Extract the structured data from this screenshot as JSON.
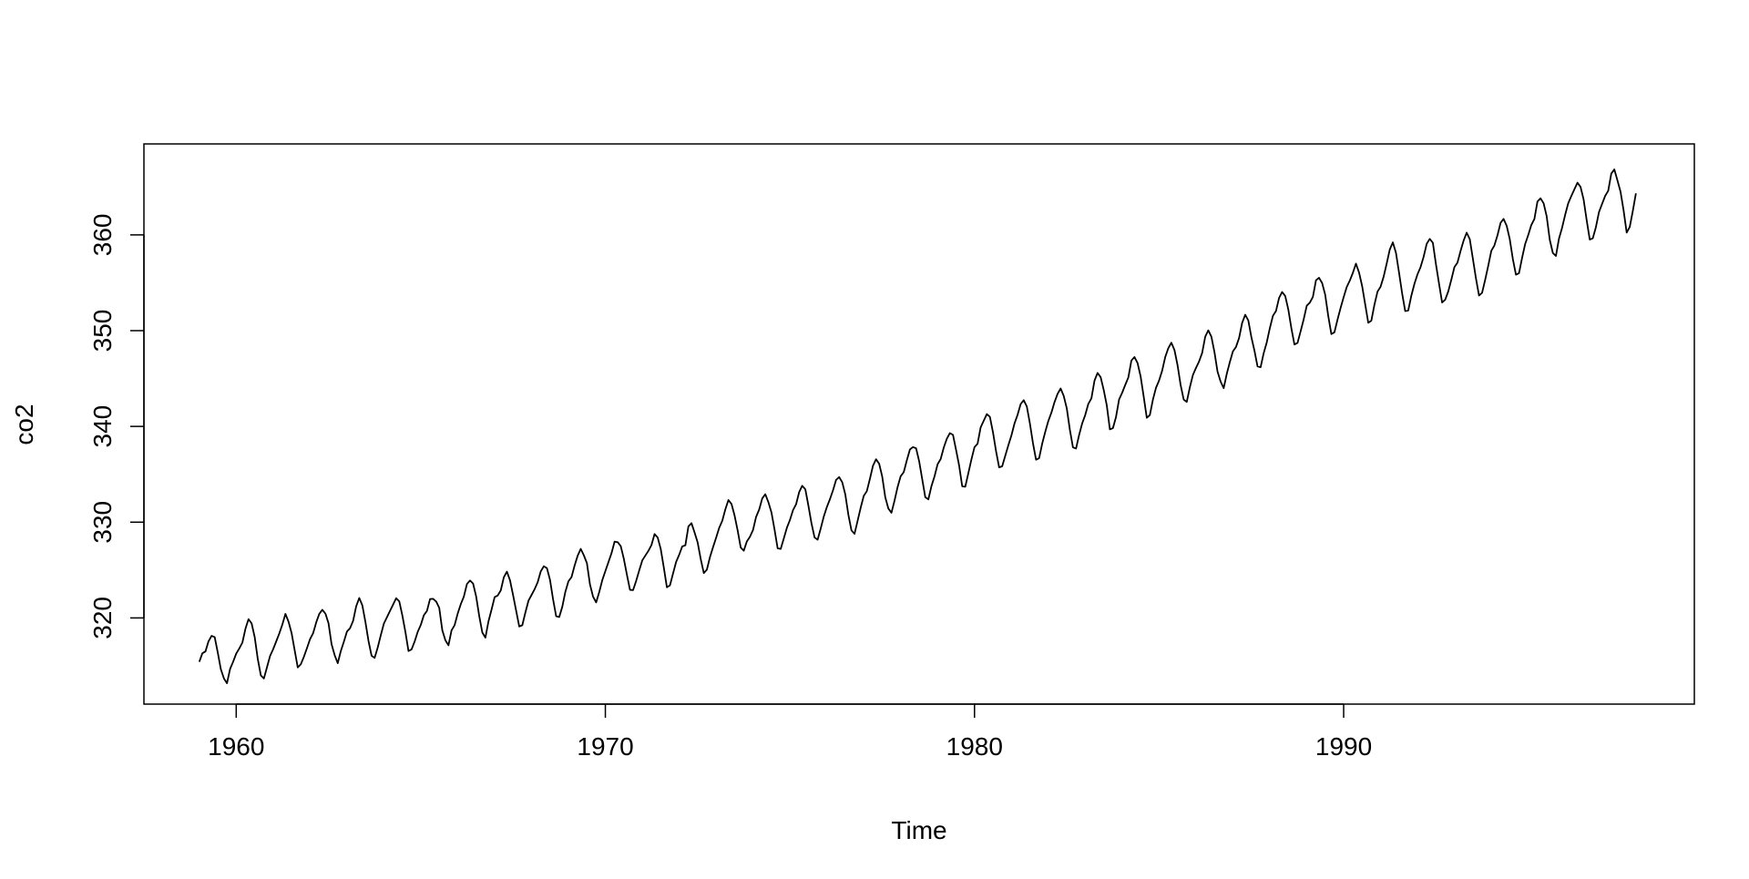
{
  "chart_data": {
    "type": "line",
    "title": "",
    "xlabel": "Time",
    "ylabel": "co2",
    "xlim": [
      1957.5,
      1999.5
    ],
    "ylim": [
      311,
      369.5
    ],
    "x_ticks": [
      1960,
      1970,
      1980,
      1990
    ],
    "y_ticks": [
      320,
      330,
      340,
      350,
      360
    ],
    "grid": false,
    "legend": "none",
    "line_color": "#000000",
    "x": [
      1959.0,
      1959.083,
      1959.167,
      1959.25,
      1959.333,
      1959.417,
      1959.5,
      1959.583,
      1959.667,
      1959.75,
      1959.833,
      1959.917,
      1960.0,
      1960.083,
      1960.167,
      1960.25,
      1960.333,
      1960.417,
      1960.5,
      1960.583,
      1960.667,
      1960.75,
      1960.833,
      1960.917,
      1961.0,
      1961.083,
      1961.167,
      1961.25,
      1961.333,
      1961.417,
      1961.5,
      1961.583,
      1961.667,
      1961.75,
      1961.833,
      1961.917,
      1962.0,
      1962.083,
      1962.167,
      1962.25,
      1962.333,
      1962.417,
      1962.5,
      1962.583,
      1962.667,
      1962.75,
      1962.833,
      1962.917,
      1963.0,
      1963.083,
      1963.167,
      1963.25,
      1963.333,
      1963.417,
      1963.5,
      1963.583,
      1963.667,
      1963.75,
      1963.833,
      1963.917,
      1964.0,
      1964.083,
      1964.167,
      1964.25,
      1964.333,
      1964.417,
      1964.5,
      1964.583,
      1964.667,
      1964.75,
      1964.833,
      1964.917,
      1965.0,
      1965.083,
      1965.167,
      1965.25,
      1965.333,
      1965.417,
      1965.5,
      1965.583,
      1965.667,
      1965.75,
      1965.833,
      1965.917,
      1966.0,
      1966.083,
      1966.167,
      1966.25,
      1966.333,
      1966.417,
      1966.5,
      1966.583,
      1966.667,
      1966.75,
      1966.833,
      1966.917,
      1967.0,
      1967.083,
      1967.167,
      1967.25,
      1967.333,
      1967.417,
      1967.5,
      1967.583,
      1967.667,
      1967.75,
      1967.833,
      1967.917,
      1968.0,
      1968.083,
      1968.167,
      1968.25,
      1968.333,
      1968.417,
      1968.5,
      1968.583,
      1968.667,
      1968.75,
      1968.833,
      1968.917,
      1969.0,
      1969.083,
      1969.167,
      1969.25,
      1969.333,
      1969.417,
      1969.5,
      1969.583,
      1969.667,
      1969.75,
      1969.833,
      1969.917,
      1970.0,
      1970.083,
      1970.167,
      1970.25,
      1970.333,
      1970.417,
      1970.5,
      1970.583,
      1970.667,
      1970.75,
      1970.833,
      1970.917,
      1971.0,
      1971.083,
      1971.167,
      1971.25,
      1971.333,
      1971.417,
      1971.5,
      1971.583,
      1971.667,
      1971.75,
      1971.833,
      1971.917,
      1972.0,
      1972.083,
      1972.167,
      1972.25,
      1972.333,
      1972.417,
      1972.5,
      1972.583,
      1972.667,
      1972.75,
      1972.833,
      1972.917,
      1973.0,
      1973.083,
      1973.167,
      1973.25,
      1973.333,
      1973.417,
      1973.5,
      1973.583,
      1973.667,
      1973.75,
      1973.833,
      1973.917,
      1974.0,
      1974.083,
      1974.167,
      1974.25,
      1974.333,
      1974.417,
      1974.5,
      1974.583,
      1974.667,
      1974.75,
      1974.833,
      1974.917,
      1975.0,
      1975.083,
      1975.167,
      1975.25,
      1975.333,
      1975.417,
      1975.5,
      1975.583,
      1975.667,
      1975.75,
      1975.833,
      1975.917,
      1976.0,
      1976.083,
      1976.167,
      1976.25,
      1976.333,
      1976.417,
      1976.5,
      1976.583,
      1976.667,
      1976.75,
      1976.833,
      1976.917,
      1977.0,
      1977.083,
      1977.167,
      1977.25,
      1977.333,
      1977.417,
      1977.5,
      1977.583,
      1977.667,
      1977.75,
      1977.833,
      1977.917,
      1978.0,
      1978.083,
      1978.167,
      1978.25,
      1978.333,
      1978.417,
      1978.5,
      1978.583,
      1978.667,
      1978.75,
      1978.833,
      1978.917,
      1979.0,
      1979.083,
      1979.167,
      1979.25,
      1979.333,
      1979.417,
      1979.5,
      1979.583,
      1979.667,
      1979.75,
      1979.833,
      1979.917,
      1980.0,
      1980.083,
      1980.167,
      1980.25,
      1980.333,
      1980.417,
      1980.5,
      1980.583,
      1980.667,
      1980.75,
      1980.833,
      1980.917,
      1981.0,
      1981.083,
      1981.167,
      1981.25,
      1981.333,
      1981.417,
      1981.5,
      1981.583,
      1981.667,
      1981.75,
      1981.833,
      1981.917,
      1982.0,
      1982.083,
      1982.167,
      1982.25,
      1982.333,
      1982.417,
      1982.5,
      1982.583,
      1982.667,
      1982.75,
      1982.833,
      1982.917,
      1983.0,
      1983.083,
      1983.167,
      1983.25,
      1983.333,
      1983.417,
      1983.5,
      1983.583,
      1983.667,
      1983.75,
      1983.833,
      1983.917,
      1984.0,
      1984.083,
      1984.167,
      1984.25,
      1984.333,
      1984.417,
      1984.5,
      1984.583,
      1984.667,
      1984.75,
      1984.833,
      1984.917,
      1985.0,
      1985.083,
      1985.167,
      1985.25,
      1985.333,
      1985.417,
      1985.5,
      1985.583,
      1985.667,
      1985.75,
      1985.833,
      1985.917,
      1986.0,
      1986.083,
      1986.167,
      1986.25,
      1986.333,
      1986.417,
      1986.5,
      1986.583,
      1986.667,
      1986.75,
      1986.833,
      1986.917,
      1987.0,
      1987.083,
      1987.167,
      1987.25,
      1987.333,
      1987.417,
      1987.5,
      1987.583,
      1987.667,
      1987.75,
      1987.833,
      1987.917,
      1988.0,
      1988.083,
      1988.167,
      1988.25,
      1988.333,
      1988.417,
      1988.5,
      1988.583,
      1988.667,
      1988.75,
      1988.833,
      1988.917,
      1989.0,
      1989.083,
      1989.167,
      1989.25,
      1989.333,
      1989.417,
      1989.5,
      1989.583,
      1989.667,
      1989.75,
      1989.833,
      1989.917,
      1990.0,
      1990.083,
      1990.167,
      1990.25,
      1990.333,
      1990.417,
      1990.5,
      1990.583,
      1990.667,
      1990.75,
      1990.833,
      1990.917,
      1991.0,
      1991.083,
      1991.167,
      1991.25,
      1991.333,
      1991.417,
      1991.5,
      1991.583,
      1991.667,
      1991.75,
      1991.833,
      1991.917,
      1992.0,
      1992.083,
      1992.167,
      1992.25,
      1992.333,
      1992.417,
      1992.5,
      1992.583,
      1992.667,
      1992.75,
      1992.833,
      1992.917,
      1993.0,
      1993.083,
      1993.167,
      1993.25,
      1993.333,
      1993.417,
      1993.5,
      1993.583,
      1993.667,
      1993.75,
      1993.833,
      1993.917,
      1994.0,
      1994.083,
      1994.167,
      1994.25,
      1994.333,
      1994.417,
      1994.5,
      1994.583,
      1994.667,
      1994.75,
      1994.833,
      1994.917,
      1995.0,
      1995.083,
      1995.167,
      1995.25,
      1995.333,
      1995.417,
      1995.5,
      1995.583,
      1995.667,
      1995.75,
      1995.833,
      1995.917,
      1996.0,
      1996.083,
      1996.167,
      1996.25,
      1996.333,
      1996.417,
      1996.5,
      1996.583,
      1996.667,
      1996.75,
      1996.833,
      1996.917,
      1997.0,
      1997.083,
      1997.167,
      1997.25,
      1997.333,
      1997.417,
      1997.5,
      1997.583,
      1997.667,
      1997.75,
      1997.833,
      1997.917
    ],
    "series": [
      {
        "values": [
          315.42,
          316.31,
          316.5,
          317.56,
          318.13,
          318.0,
          316.39,
          314.65,
          313.68,
          313.18,
          314.66,
          315.43,
          316.27,
          316.81,
          317.42,
          318.87,
          319.87,
          319.43,
          318.01,
          315.74,
          314.0,
          313.68,
          314.84,
          316.03,
          316.73,
          317.54,
          318.38,
          319.31,
          320.42,
          319.61,
          318.42,
          316.63,
          314.83,
          315.16,
          315.94,
          316.85,
          317.78,
          318.4,
          319.53,
          320.42,
          320.85,
          320.45,
          319.45,
          317.25,
          316.11,
          315.27,
          316.53,
          317.53,
          318.58,
          318.92,
          319.7,
          321.22,
          322.08,
          321.31,
          319.58,
          317.61,
          316.05,
          315.83,
          316.91,
          318.2,
          319.41,
          320.07,
          320.74,
          321.4,
          322.06,
          321.73,
          320.27,
          318.54,
          316.54,
          316.71,
          317.53,
          318.55,
          319.27,
          320.28,
          320.73,
          321.97,
          322.0,
          321.71,
          321.05,
          318.71,
          317.66,
          317.14,
          318.7,
          319.25,
          320.46,
          321.43,
          322.23,
          323.54,
          323.91,
          323.59,
          322.24,
          320.2,
          318.48,
          317.94,
          319.63,
          320.87,
          322.17,
          322.34,
          322.88,
          324.25,
          324.83,
          323.93,
          322.38,
          320.76,
          319.1,
          319.24,
          320.56,
          321.8,
          322.4,
          322.99,
          323.73,
          324.86,
          325.4,
          325.2,
          323.98,
          321.95,
          320.18,
          320.09,
          321.16,
          322.74,
          323.83,
          324.26,
          325.47,
          326.5,
          327.21,
          326.54,
          325.72,
          323.5,
          322.22,
          321.62,
          322.69,
          323.95,
          324.89,
          325.82,
          326.77,
          327.97,
          327.91,
          327.5,
          326.18,
          324.53,
          322.93,
          322.9,
          323.85,
          324.96,
          326.01,
          326.51,
          327.01,
          327.62,
          328.76,
          328.4,
          327.2,
          325.27,
          323.2,
          323.4,
          324.63,
          325.85,
          326.6,
          327.47,
          327.58,
          329.56,
          329.9,
          328.92,
          327.88,
          326.16,
          324.68,
          325.04,
          326.34,
          327.39,
          328.37,
          329.4,
          330.14,
          331.33,
          332.31,
          331.9,
          330.7,
          329.15,
          327.35,
          327.02,
          327.99,
          328.48,
          329.18,
          330.55,
          331.32,
          332.48,
          332.92,
          332.08,
          331.01,
          329.23,
          327.27,
          327.21,
          328.29,
          329.41,
          330.23,
          331.25,
          331.87,
          333.14,
          333.8,
          333.43,
          331.73,
          329.9,
          328.4,
          328.17,
          329.32,
          330.59,
          331.58,
          332.39,
          333.33,
          334.41,
          334.71,
          334.17,
          332.89,
          330.77,
          329.14,
          328.78,
          330.14,
          331.52,
          332.75,
          333.24,
          334.53,
          335.9,
          336.57,
          336.1,
          334.76,
          332.59,
          331.42,
          330.98,
          332.24,
          333.68,
          334.8,
          335.22,
          336.47,
          337.59,
          337.84,
          337.72,
          336.37,
          334.51,
          332.6,
          332.38,
          333.75,
          334.78,
          336.05,
          336.59,
          337.79,
          338.71,
          339.3,
          339.12,
          337.56,
          335.92,
          333.75,
          333.7,
          335.12,
          336.56,
          337.84,
          338.19,
          339.91,
          340.6,
          341.29,
          341.0,
          339.39,
          337.43,
          335.72,
          335.84,
          336.93,
          338.04,
          339.06,
          340.3,
          341.21,
          342.33,
          342.74,
          342.08,
          340.32,
          338.26,
          336.52,
          336.68,
          338.19,
          339.44,
          340.57,
          341.44,
          342.53,
          343.39,
          343.96,
          343.18,
          341.88,
          339.65,
          337.81,
          337.69,
          339.09,
          340.32,
          341.2,
          342.35,
          342.93,
          344.77,
          345.58,
          345.14,
          343.81,
          342.21,
          339.69,
          339.82,
          340.98,
          342.82,
          343.52,
          344.33,
          345.11,
          346.88,
          347.25,
          346.62,
          345.22,
          343.11,
          340.9,
          341.18,
          342.8,
          344.04,
          344.79,
          345.82,
          347.25,
          348.17,
          348.74,
          347.97,
          346.4,
          344.34,
          342.8,
          342.56,
          344.07,
          345.38,
          346.11,
          346.78,
          347.68,
          349.37,
          350.03,
          349.37,
          347.76,
          345.73,
          344.68,
          343.99,
          345.48,
          346.72,
          347.84,
          348.29,
          349.23,
          350.8,
          351.66,
          351.07,
          349.33,
          347.92,
          346.27,
          346.18,
          347.64,
          348.78,
          350.25,
          351.54,
          352.05,
          353.41,
          354.04,
          353.62,
          352.22,
          350.27,
          348.55,
          348.72,
          349.91,
          351.18,
          352.6,
          352.92,
          353.53,
          355.26,
          355.52,
          354.97,
          353.75,
          351.52,
          349.64,
          349.83,
          351.14,
          352.37,
          353.5,
          354.55,
          355.23,
          356.04,
          357.0,
          356.07,
          354.67,
          352.76,
          350.82,
          351.04,
          352.69,
          354.07,
          354.59,
          355.63,
          357.03,
          358.48,
          359.22,
          358.12,
          356.06,
          353.92,
          352.05,
          352.11,
          353.64,
          354.89,
          355.88,
          356.63,
          357.72,
          359.07,
          359.58,
          359.17,
          356.94,
          354.92,
          352.94,
          353.23,
          354.09,
          355.33,
          356.63,
          357.1,
          358.32,
          359.41,
          360.23,
          359.55,
          357.53,
          355.48,
          353.67,
          353.95,
          355.3,
          356.78,
          358.34,
          358.89,
          359.95,
          361.25,
          361.67,
          360.94,
          359.55,
          357.49,
          355.84,
          356.0,
          357.59,
          359.05,
          359.98,
          361.03,
          361.66,
          363.48,
          363.82,
          363.3,
          361.94,
          359.5,
          358.11,
          357.8,
          359.61,
          360.74,
          362.09,
          363.29,
          364.06,
          364.76,
          365.45,
          365.01,
          363.7,
          361.54,
          359.51,
          359.65,
          360.8,
          362.38,
          363.23,
          364.06,
          364.61,
          366.4,
          366.84,
          365.68,
          364.52,
          362.57,
          360.24,
          360.83,
          362.49,
          364.34
        ]
      }
    ]
  }
}
